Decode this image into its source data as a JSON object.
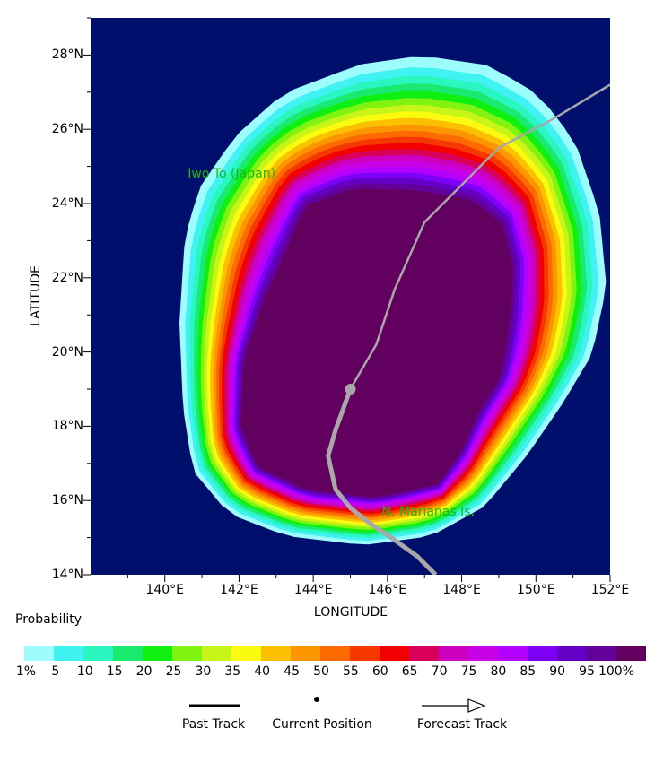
{
  "map": {
    "y_axis_title": "LATITUDE",
    "x_axis_title": "LONGITUDE",
    "lat_ticks": [
      "14°N",
      "16°N",
      "18°N",
      "20°N",
      "22°N",
      "24°N",
      "26°N",
      "28°N"
    ],
    "lon_ticks": [
      "140°E",
      "142°E",
      "144°E",
      "146°E",
      "148°E",
      "150°E",
      "152°E"
    ],
    "lat_range": [
      14,
      29
    ],
    "lon_range": [
      138,
      152
    ],
    "ocean_color": "#000f6b",
    "places": [
      {
        "label": "Iwo To (Japan)",
        "lon": 141.8,
        "lat": 24.8,
        "color": "#17b817"
      },
      {
        "label": "N. Marianas Is.",
        "lon": 147.1,
        "lat": 15.7,
        "color": "#17b817"
      }
    ],
    "past_track": [
      [
        147.3,
        14.0
      ],
      [
        146.8,
        14.5
      ],
      [
        146.1,
        15.0
      ],
      [
        145.5,
        15.4
      ],
      [
        145.0,
        15.8
      ],
      [
        144.6,
        16.3
      ],
      [
        144.4,
        17.2
      ],
      [
        144.6,
        17.9
      ],
      [
        145.0,
        19.0
      ]
    ],
    "current_position": {
      "lon": 145.0,
      "lat": 19.0
    },
    "forecast_track": [
      [
        145.0,
        19.0
      ],
      [
        145.7,
        20.2
      ],
      [
        146.2,
        21.7
      ],
      [
        147.0,
        23.5
      ],
      [
        148.0,
        24.5
      ],
      [
        149.0,
        25.5
      ],
      [
        150.5,
        26.3
      ],
      [
        152.0,
        27.2
      ]
    ],
    "track_color": "#a8a8a8"
  },
  "legend": {
    "title": "Probability",
    "labels": [
      "1%",
      "5",
      "10",
      "15",
      "20",
      "25",
      "30",
      "35",
      "40",
      "45",
      "50",
      "55",
      "60",
      "65",
      "70",
      "75",
      "80",
      "85",
      "90",
      "95",
      "100%"
    ],
    "colors": [
      "#9dfdfd",
      "#40f2f2",
      "#2af6c0",
      "#1aea70",
      "#10f010",
      "#80f310",
      "#c6f517",
      "#fbfb10",
      "#fbc100",
      "#fb9600",
      "#fc6a00",
      "#f53800",
      "#f20000",
      "#d9005a",
      "#cc00bf",
      "#c800e6",
      "#b400ff",
      "#7e00f7",
      "#6300c3",
      "#63009a",
      "#620060"
    ],
    "key_items": [
      "Past Track",
      "Current Position",
      "Forecast Track"
    ]
  }
}
